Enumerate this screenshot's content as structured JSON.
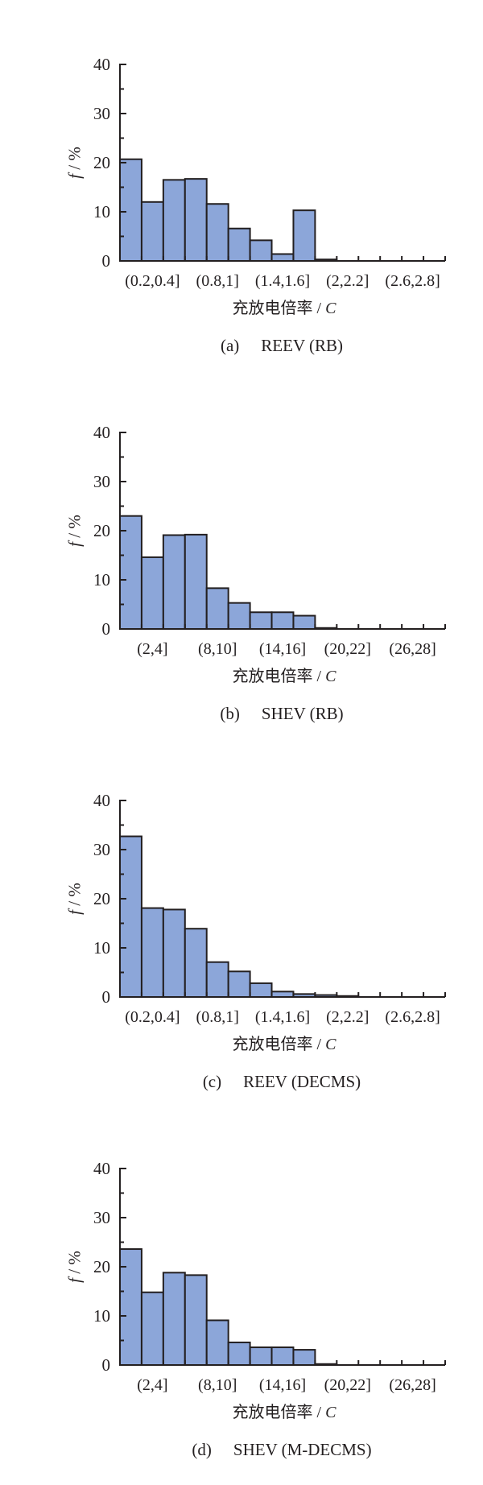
{
  "colors": {
    "background": "#ffffff",
    "bar_fill": "#8ca6d9",
    "bar_stroke": "#231f20",
    "axis": "#231f20",
    "text": "#231f20"
  },
  "chart_data": [
    {
      "type": "bar",
      "panel_label": "(a)",
      "title": "REEV (RB)",
      "xlabel": "充放电倍率 / C",
      "ylabel": "f / %",
      "ylim": [
        0,
        40
      ],
      "y_major_ticks": [
        0,
        10,
        20,
        30,
        40
      ],
      "y_minor_ticks": [
        5,
        15,
        25,
        35
      ],
      "grid": false,
      "legend": false,
      "categories": [
        "(0,0.2]",
        "(0.2,0.4]",
        "(0.4,0.6]",
        "(0.6,0.8]",
        "(0.8,1]",
        "(1,1.2]",
        "(1.2,1.4]",
        "(1.4,1.6]",
        "(1.6,1.8]",
        "(1.8,2]",
        "(2,2.2]",
        "(2.2,2.4]",
        "(2.4,2.6]",
        "(2.6,2.8]",
        "(2.8,3]"
      ],
      "values": [
        20.7,
        12.0,
        16.5,
        16.7,
        11.6,
        6.6,
        4.2,
        1.4,
        10.3,
        0.3,
        0,
        0,
        0,
        0,
        0
      ],
      "labeled_bin_indices": [
        1,
        4,
        7,
        10,
        13
      ],
      "shown_x_tick_labels": [
        "(0.2,0.4]",
        "(0.8,1]",
        "(1.4,1.6]",
        "(2,2.2]",
        "(2.6,2.8]"
      ]
    },
    {
      "type": "bar",
      "panel_label": "(b)",
      "title": "SHEV (RB)",
      "xlabel": "充放电倍率 / C",
      "ylabel": "f / %",
      "ylim": [
        0,
        40
      ],
      "y_major_ticks": [
        0,
        10,
        20,
        30,
        40
      ],
      "y_minor_ticks": [
        5,
        15,
        25,
        35
      ],
      "grid": false,
      "legend": false,
      "categories": [
        "(0,2]",
        "(2,4]",
        "(4,6]",
        "(6,8]",
        "(8,10]",
        "(10,12]",
        "(12,14]",
        "(14,16]",
        "(16,18]",
        "(18,20]",
        "(20,22]",
        "(22,24]",
        "(24,26]",
        "(26,28]",
        "(28,30]"
      ],
      "values": [
        23.0,
        14.6,
        19.1,
        19.2,
        8.3,
        5.3,
        3.4,
        3.4,
        2.7,
        0.2,
        0,
        0,
        0,
        0,
        0
      ],
      "labeled_bin_indices": [
        1,
        4,
        7,
        10,
        13
      ],
      "shown_x_tick_labels": [
        "(2,4]",
        "(8,10]",
        "(14,16]",
        "(20,22]",
        "(26,28]"
      ]
    },
    {
      "type": "bar",
      "panel_label": "(c)",
      "title": "REEV (DECMS)",
      "xlabel": "充放电倍率 / C",
      "ylabel": "f / %",
      "ylim": [
        0,
        40
      ],
      "y_major_ticks": [
        0,
        10,
        20,
        30,
        40
      ],
      "y_minor_ticks": [
        5,
        15,
        25,
        35
      ],
      "grid": false,
      "legend": false,
      "categories": [
        "(0,0.2]",
        "(0.2,0.4]",
        "(0.4,0.6]",
        "(0.6,0.8]",
        "(0.8,1]",
        "(1,1.2]",
        "(1.2,1.4]",
        "(1.4,1.6]",
        "(1.6,1.8]",
        "(1.8,2]",
        "(2,2.2]",
        "(2.2,2.4]",
        "(2.4,2.6]",
        "(2.6,2.8]",
        "(2.8,3]"
      ],
      "values": [
        32.7,
        18.1,
        17.8,
        13.9,
        7.1,
        5.2,
        2.8,
        1.1,
        0.6,
        0.4,
        0.2,
        0,
        0,
        0,
        0
      ],
      "labeled_bin_indices": [
        1,
        4,
        7,
        10,
        13
      ],
      "shown_x_tick_labels": [
        "(0.2,0.4]",
        "(0.8,1]",
        "(1.4,1.6]",
        "(2,2.2]",
        "(2.6,2.8]"
      ]
    },
    {
      "type": "bar",
      "panel_label": "(d)",
      "title": "SHEV (M-DECMS)",
      "xlabel": "充放电倍率 / C",
      "ylabel": "f / %",
      "ylim": [
        0,
        40
      ],
      "y_major_ticks": [
        0,
        10,
        20,
        30,
        40
      ],
      "y_minor_ticks": [
        5,
        15,
        25,
        35
      ],
      "grid": false,
      "legend": false,
      "categories": [
        "(0,2]",
        "(2,4]",
        "(4,6]",
        "(6,8]",
        "(8,10]",
        "(10,12]",
        "(12,14]",
        "(14,16]",
        "(16,18]",
        "(18,20]",
        "(20,22]",
        "(22,24]",
        "(24,26]",
        "(26,28]",
        "(28,30]"
      ],
      "values": [
        23.6,
        14.8,
        18.8,
        18.3,
        9.1,
        4.6,
        3.6,
        3.6,
        3.1,
        0.2,
        0,
        0,
        0,
        0,
        0
      ],
      "labeled_bin_indices": [
        1,
        4,
        7,
        10,
        13
      ],
      "shown_x_tick_labels": [
        "(2,4]",
        "(8,10]",
        "(14,16]",
        "(20,22]",
        "(26,28]"
      ]
    }
  ]
}
